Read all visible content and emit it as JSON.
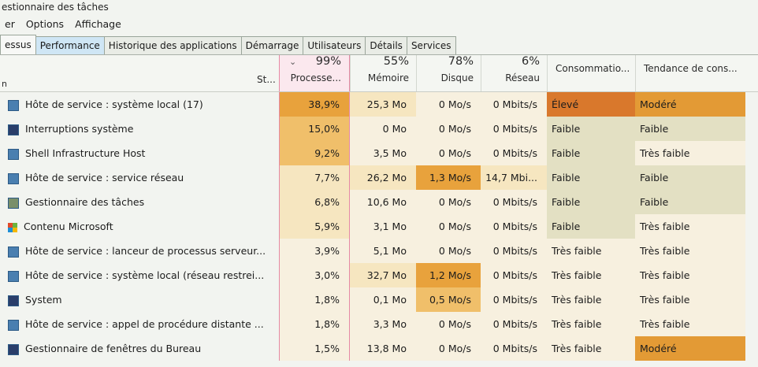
{
  "window": {
    "title": "estionnaire des tâches"
  },
  "menu": [
    "er",
    "Options",
    "Affichage"
  ],
  "tabs": [
    "essus",
    "Performance",
    "Historique des applications",
    "Démarrage",
    "Utilisateurs",
    "Détails",
    "Services"
  ],
  "columns": {
    "name_partial": "n",
    "status": "St...",
    "cpu": {
      "pct": "99%",
      "label": "Processe..."
    },
    "memory": {
      "pct": "55%",
      "label": "Mémoire"
    },
    "disk": {
      "pct": "78%",
      "label": "Disque"
    },
    "network": {
      "pct": "6%",
      "label": "Réseau"
    },
    "power": {
      "label": "Consommatio..."
    },
    "trend": {
      "label": "Tendance de cons..."
    }
  },
  "rows": [
    {
      "icon": "service-host-icon",
      "name": "Hôte de service : système local (17)",
      "cpu": "38,9%",
      "mem": "25,3 Mo",
      "disk": "0 Mo/s",
      "net": "0 Mbits/s",
      "power": "Élevé",
      "trend": "Modéré"
    },
    {
      "icon": "system-interrupts-icon",
      "name": "Interruptions système",
      "cpu": "15,0%",
      "mem": "0 Mo",
      "disk": "0 Mo/s",
      "net": "0 Mbits/s",
      "power": "Faible",
      "trend": "Faible"
    },
    {
      "icon": "shell-host-icon",
      "name": "Shell Infrastructure Host",
      "cpu": "9,2%",
      "mem": "3,5 Mo",
      "disk": "0 Mo/s",
      "net": "0 Mbits/s",
      "power": "Faible",
      "trend": "Très faible"
    },
    {
      "icon": "service-host-icon",
      "name": "Hôte de service : service réseau",
      "cpu": "7,7%",
      "mem": "26,2 Mo",
      "disk": "1,3 Mo/s",
      "net": "14,7 Mbi...",
      "power": "Faible",
      "trend": "Faible"
    },
    {
      "icon": "task-manager-icon",
      "name": "Gestionnaire des tâches",
      "cpu": "6,8%",
      "mem": "10,6 Mo",
      "disk": "0 Mo/s",
      "net": "0 Mbits/s",
      "power": "Faible",
      "trend": "Faible"
    },
    {
      "icon": "microsoft-content-icon",
      "name": "Contenu Microsoft",
      "cpu": "5,9%",
      "mem": "3,1 Mo",
      "disk": "0 Mo/s",
      "net": "0 Mbits/s",
      "power": "Faible",
      "trend": "Très faible"
    },
    {
      "icon": "service-host-icon",
      "name": "Hôte de service : lanceur de processus serveur...",
      "cpu": "3,9%",
      "mem": "5,1 Mo",
      "disk": "0 Mo/s",
      "net": "0 Mbits/s",
      "power": "Très faible",
      "trend": "Très faible"
    },
    {
      "icon": "service-host-icon",
      "name": "Hôte de service : système local (réseau restrei...",
      "cpu": "3,0%",
      "mem": "32,7 Mo",
      "disk": "1,2 Mo/s",
      "net": "0 Mbits/s",
      "power": "Très faible",
      "trend": "Très faible"
    },
    {
      "icon": "system-icon",
      "name": "System",
      "cpu": "1,8%",
      "mem": "0,1 Mo",
      "disk": "0,5 Mo/s",
      "net": "0 Mbits/s",
      "power": "Très faible",
      "trend": "Très faible"
    },
    {
      "icon": "service-host-icon",
      "name": "Hôte de service : appel de procédure distante ...",
      "cpu": "1,8%",
      "mem": "3,3 Mo",
      "disk": "0 Mo/s",
      "net": "0 Mbits/s",
      "power": "Très faible",
      "trend": "Très faible"
    },
    {
      "icon": "desktop-window-manager-icon",
      "name": "Gestionnaire de fenêtres du Bureau",
      "cpu": "1,5%",
      "mem": "13,8 Mo",
      "disk": "0 Mo/s",
      "net": "0 Mbits/s",
      "power": "Très faible",
      "trend": "Modéré"
    }
  ],
  "heat_colors": {
    "very_high": "#e8a23c",
    "high": "#f0bf6a",
    "mid": "#f3d38f",
    "low": "#f6e6c0",
    "pale": "#f7f0df",
    "power_high": "#d9782c",
    "trend_moderate": "#e39a35",
    "green_low": "#e3e0c3"
  }
}
